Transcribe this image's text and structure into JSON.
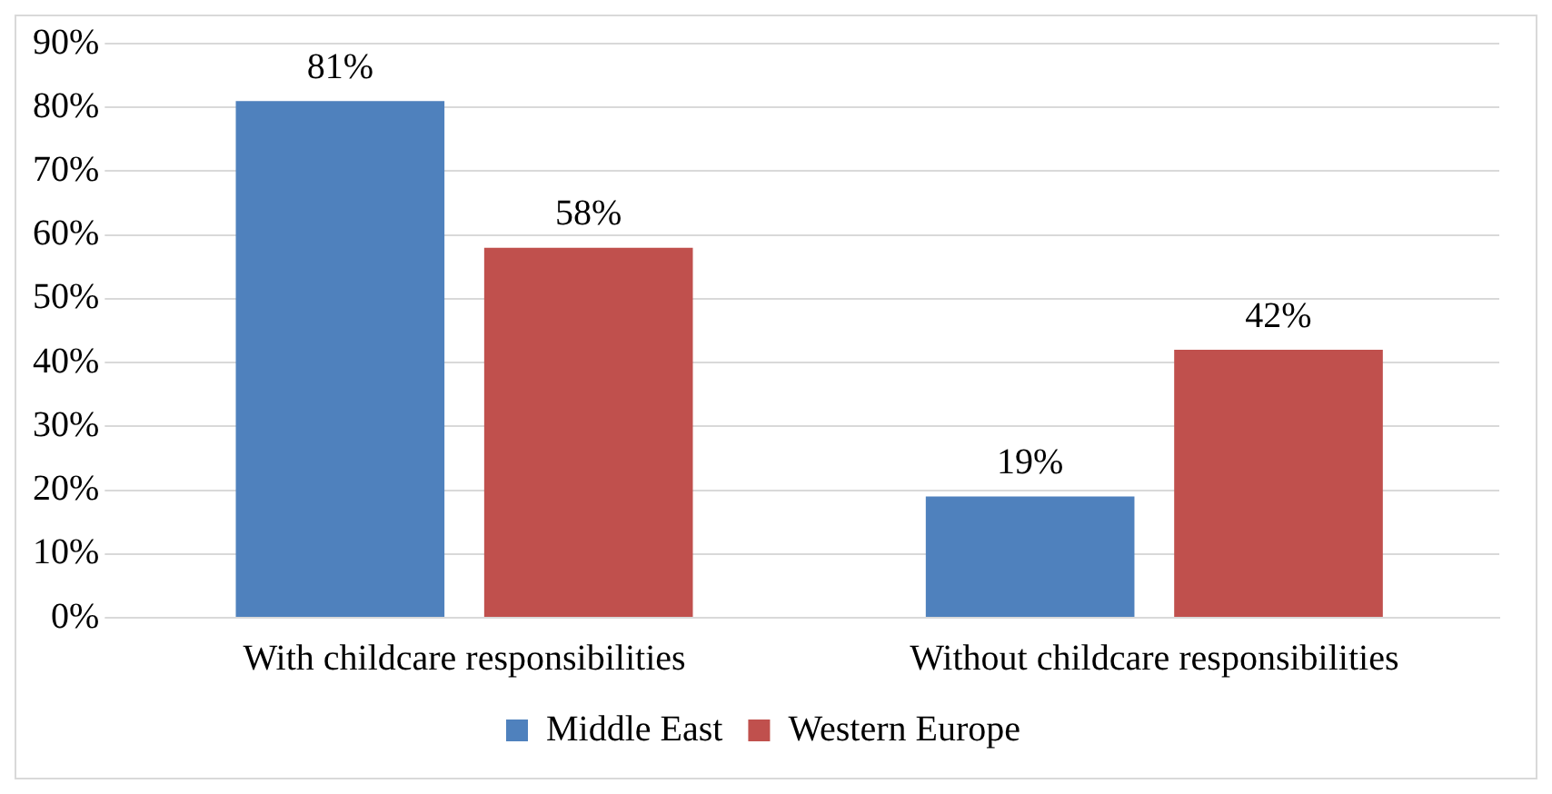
{
  "chart_data": {
    "type": "bar",
    "categories": [
      "With childcare responsibilities",
      "Without childcare responsibilities"
    ],
    "series": [
      {
        "name": "Middle East",
        "color": "#4f81bd",
        "values": [
          81,
          19
        ],
        "value_labels": [
          "81%",
          "19%"
        ]
      },
      {
        "name": "Western Europe",
        "color": "#c0504d",
        "values": [
          58,
          42
        ],
        "value_labels": [
          "58%",
          "42%"
        ]
      }
    ],
    "ylim": [
      0,
      90
    ],
    "yticks": [
      {
        "value": 0,
        "label": "0%"
      },
      {
        "value": 10,
        "label": "10%"
      },
      {
        "value": 20,
        "label": "20%"
      },
      {
        "value": 30,
        "label": "30%"
      },
      {
        "value": 40,
        "label": "40%"
      },
      {
        "value": 50,
        "label": "50%"
      },
      {
        "value": 60,
        "label": "60%"
      },
      {
        "value": 70,
        "label": "70%"
      },
      {
        "value": 80,
        "label": "80%"
      },
      {
        "value": 90,
        "label": "90%"
      }
    ],
    "grid": "y",
    "legend": "bottom"
  }
}
